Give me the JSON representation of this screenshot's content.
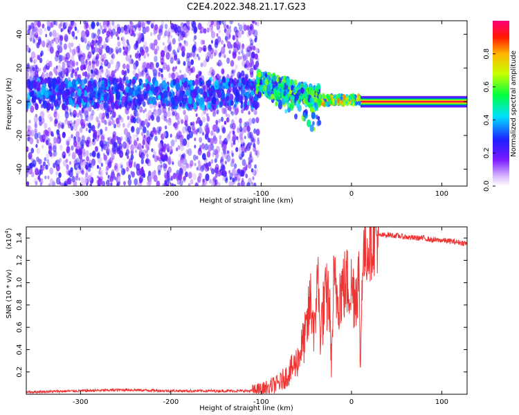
{
  "title": "C2E4.2022.348.21.17.G23",
  "chart_data": [
    {
      "type": "heatmap",
      "xlabel": "Height of straight line (km)",
      "ylabel": "Frequency (Hz)",
      "xlim": [
        -360,
        128
      ],
      "ylim": [
        -50,
        48
      ],
      "xticks": [
        -300,
        -200,
        -100,
        0,
        100
      ],
      "yticks": [
        -40,
        -20,
        0,
        20,
        40
      ],
      "colorbar": {
        "label": "Normalized spectral amplitude",
        "range": [
          0.0,
          1.0
        ],
        "ticks": [
          0.0,
          0.2,
          0.4,
          0.6,
          0.8
        ],
        "colormap": "white-violet-blue-cyan-green-yellow-red-magenta"
      },
      "features": [
        {
          "x_range": [
            -360,
            -103
          ],
          "freq_spread": [
            -50,
            48
          ],
          "amplitude": 0.15
        },
        {
          "x_range": [
            -360,
            -103
          ],
          "freq_center": 5,
          "amplitude": 0.3
        },
        {
          "x_range": [
            -105,
            -35
          ],
          "freq_center": 5,
          "freq_spread": [
            -30,
            15
          ],
          "amplitude": 0.45
        },
        {
          "x_range": [
            -35,
            10
          ],
          "freq_center": 1,
          "amplitude": 0.6
        },
        {
          "x_range": [
            10,
            128
          ],
          "freq_center": 0,
          "amplitude": 0.95
        }
      ]
    },
    {
      "type": "line",
      "xlabel": "Height of straight line (km)",
      "ylabel": "SNR (10 * v/v)",
      "y_multiplier": "(x10",
      "y_multiplier_exp": "4",
      "xlim": [
        -360,
        128
      ],
      "ylim": [
        0,
        1.5
      ],
      "xticks": [
        -300,
        -200,
        -100,
        0,
        100
      ],
      "yticks": [
        0.2,
        0.4,
        0.6,
        0.8,
        1.0,
        1.2,
        1.4
      ],
      "color": "#ee3333",
      "series": [
        {
          "x": [
            -360,
            -300,
            -250,
            -200,
            -150,
            -110,
            -100,
            -90,
            -80,
            -70,
            -60,
            -50,
            -45,
            -40,
            -38,
            -35,
            -30,
            -25,
            -22,
            -20,
            -15,
            -10,
            -5,
            0,
            5,
            8,
            10,
            12,
            15,
            20,
            25,
            30,
            40,
            50,
            60,
            70,
            80,
            90,
            100,
            110,
            120,
            128
          ],
          "y": [
            0.02,
            0.03,
            0.04,
            0.03,
            0.03,
            0.03,
            0.04,
            0.07,
            0.1,
            0.18,
            0.3,
            0.55,
            0.85,
            0.5,
            1.25,
            0.55,
            0.8,
            0.9,
            0.25,
            0.95,
            0.9,
            0.95,
            1.0,
            0.95,
            0.9,
            1.1,
            0.2,
            1.2,
            1.28,
            1.35,
            1.4,
            1.42,
            1.43,
            1.42,
            1.41,
            1.4,
            1.4,
            1.38,
            1.38,
            1.37,
            1.36,
            1.35
          ]
        }
      ]
    }
  ]
}
